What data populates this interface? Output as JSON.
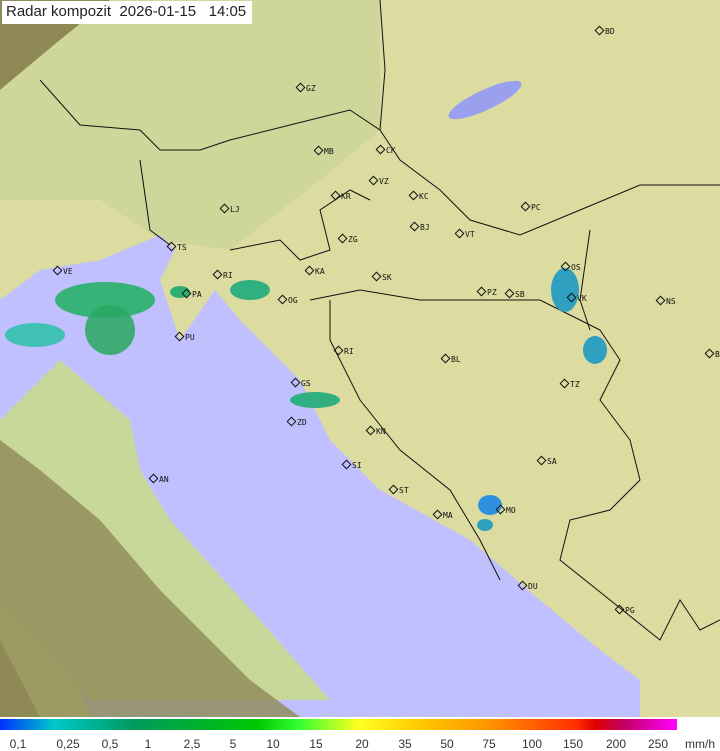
{
  "title": "Radar kompozit  2026-01-15   14:05",
  "colors": {
    "sea": "#c0c0ff",
    "land": "#e8e8a8",
    "outside": "#8a8a50"
  },
  "cities": [
    "BD",
    "GZ",
    "MB",
    "CK",
    "VZ",
    "KR",
    "KC",
    "PC",
    "LJ",
    "ZG",
    "BJ",
    "VT",
    "TS",
    "KA",
    "SK",
    "OS",
    "RI",
    "PA",
    "OG",
    "PZ",
    "SB",
    "VK",
    "NS",
    "VE",
    "PU",
    "BG",
    "RI2",
    "BL",
    "GS",
    "TZ",
    "ZD",
    "KN",
    "SA",
    "SI",
    "AN",
    "ST",
    "MO",
    "MA",
    "DU",
    "PG"
  ],
  "city_labels": {
    "BD": "BD",
    "GZ": "GZ",
    "MB": "MB",
    "CK": "CK",
    "VZ": "VZ",
    "KR": "KR",
    "KC": "KC",
    "PC": "PC",
    "LJ": "LJ",
    "ZG": "ZG",
    "BJ": "BJ",
    "VT": "VT",
    "TS": "TS",
    "KA": "KA",
    "SK": "SK",
    "OS": "OS",
    "RI": "RI",
    "PA": "PA",
    "OG": "OG",
    "PZ": "PZ",
    "SB": "SB",
    "VK": "VK",
    "NS": "NS",
    "VE": "VE",
    "PU": "PU",
    "BG": "BG",
    "RI2": "RI",
    "BL": "BL",
    "GS": "GS",
    "TZ": "TZ",
    "ZD": "ZD",
    "KN": "KN",
    "SA": "SA",
    "SI": "SI",
    "AN": "AN",
    "ST": "ST",
    "MO": "MO",
    "MA": "MA",
    "DU": "DU",
    "PG": "PG"
  },
  "legend": {
    "labels": [
      "0,1",
      "0,25",
      "0,5",
      "1",
      "2,5",
      "5",
      "10",
      "15",
      "20",
      "35",
      "50",
      "75",
      "100",
      "150",
      "200",
      "250"
    ],
    "unit": "mm/h"
  }
}
